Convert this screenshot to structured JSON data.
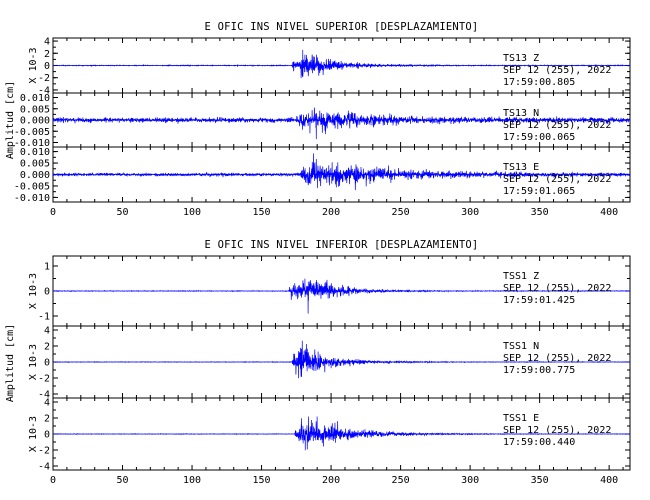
{
  "chart_data": [
    {
      "type": "line",
      "title": "E OFIC INS NIVEL SUPERIOR [DESPLAZAMIENTO]",
      "ylabel": "Amplitud [cm]",
      "xlim": [
        0,
        415
      ],
      "xticks": [
        "0",
        "50",
        "100",
        "150",
        "200",
        "250",
        "300",
        "350",
        "400"
      ],
      "traces": [
        {
          "station": "TS13",
          "component": "Z",
          "date": "SEP 12 (255), 2022",
          "time": "17:59:00.805",
          "scale": "X 10-3",
          "ylim": [
            -4.5,
            4.5
          ],
          "yticks": [
            "4",
            "2",
            "0",
            "-2",
            "-4"
          ],
          "onset": 172,
          "peak_time": 183,
          "peak_amplitude": 4.2,
          "noise": 0.1,
          "decay": 22,
          "color": "#0000ff"
        },
        {
          "station": "TS13",
          "component": "N",
          "date": "SEP 12 (255), 2022",
          "time": "17:59:00.065",
          "scale": "",
          "ylim": [
            -0.012,
            0.012
          ],
          "yticks": [
            "0.010",
            "0.005",
            "0.000",
            "-0.005",
            "-0.010"
          ],
          "onset": 175,
          "peak_time": 190,
          "peak_amplitude": 0.009,
          "noise": 0.002,
          "decay": 35,
          "color": "#0000ff"
        },
        {
          "station": "TS13",
          "component": "E",
          "date": "SEP 12 (255), 2022",
          "time": "17:59:01.065",
          "scale": "",
          "ylim": [
            -0.012,
            0.012
          ],
          "yticks": [
            "0.010",
            "0.005",
            "0.000",
            "-0.005",
            "-0.010"
          ],
          "onset": 178,
          "peak_time": 185,
          "peak_amplitude": 0.011,
          "noise": 0.0012,
          "decay": 55,
          "color": "#0000ff"
        }
      ]
    },
    {
      "type": "line",
      "title": "E OFIC INS NIVEL INFERIOR [DESPLAZAMIENTO]",
      "ylabel": "Amplitud [cm]",
      "xlim": [
        0,
        415
      ],
      "xticks": [
        "0",
        "50",
        "100",
        "150",
        "200",
        "250",
        "300",
        "350",
        "400"
      ],
      "traces": [
        {
          "station": "TSS1",
          "component": "Z",
          "date": "SEP 12 (255), 2022",
          "time": "17:59:01.425",
          "scale": "X 10-3",
          "ylim": [
            -1.4,
            1.4
          ],
          "yticks": [
            "1",
            "0",
            "-1"
          ],
          "onset": 170,
          "peak_time": 184,
          "peak_amplitude": 1.2,
          "noise": 0.02,
          "decay": 20,
          "color": "#0000ff"
        },
        {
          "station": "TSS1",
          "component": "N",
          "date": "SEP 12 (255), 2022",
          "time": "17:59:00.775",
          "scale": "X 10-3",
          "ylim": [
            -4.5,
            4.5
          ],
          "yticks": [
            "4",
            "2",
            "0",
            "-2",
            "-4"
          ],
          "onset": 172,
          "peak_time": 178,
          "peak_amplitude": 3.8,
          "noise": 0.05,
          "decay": 22,
          "color": "#0000ff"
        },
        {
          "station": "TSS1",
          "component": "E",
          "date": "SEP 12 (255), 2022",
          "time": "17:59:00.440",
          "scale": "X 10-3",
          "ylim": [
            -4.5,
            4.5
          ],
          "yticks": [
            "4",
            "2",
            "0",
            "-2",
            "-4"
          ],
          "onset": 174,
          "peak_time": 183,
          "peak_amplitude": 3.9,
          "noise": 0.05,
          "decay": 28,
          "color": "#0000ff"
        }
      ]
    }
  ]
}
